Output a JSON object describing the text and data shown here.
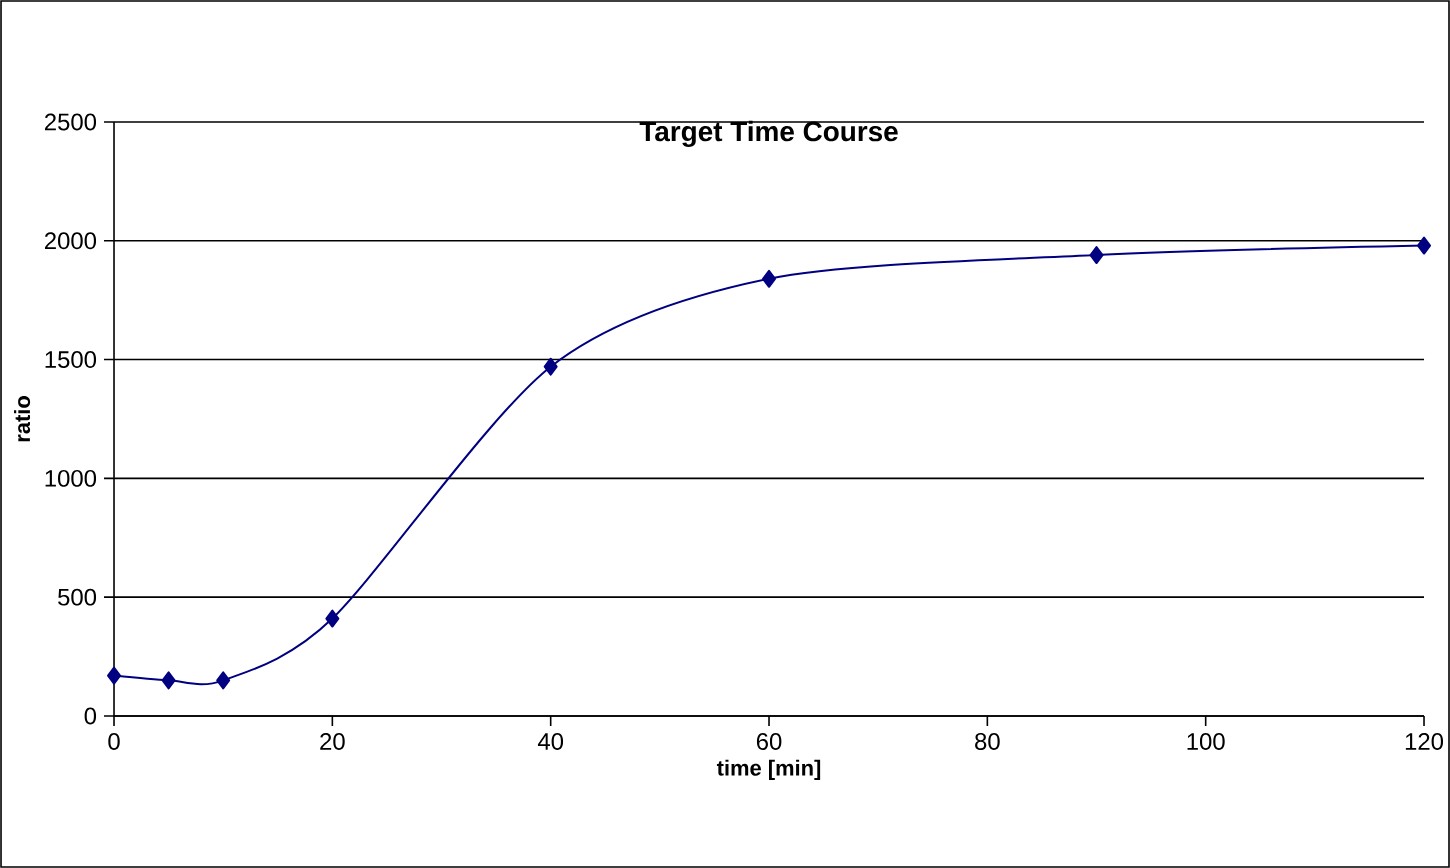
{
  "chart_data": {
    "type": "line",
    "title": "Target Time Course",
    "xlabel": "time [min]",
    "ylabel": "ratio",
    "x": [
      0,
      5,
      10,
      20,
      40,
      60,
      90,
      120
    ],
    "series": [
      {
        "color": "#000080",
        "values": [
          170,
          150,
          150,
          410,
          1470,
          1840,
          1940,
          1980
        ]
      }
    ],
    "xlim": [
      0,
      120
    ],
    "xticks": [
      0,
      20,
      40,
      60,
      80,
      100,
      120
    ],
    "ylim": [
      0,
      2500
    ],
    "yticks": [
      0,
      500,
      1000,
      1500,
      2000,
      2500
    ],
    "grid": "y",
    "marker": "diamond",
    "line_style": "solid"
  }
}
